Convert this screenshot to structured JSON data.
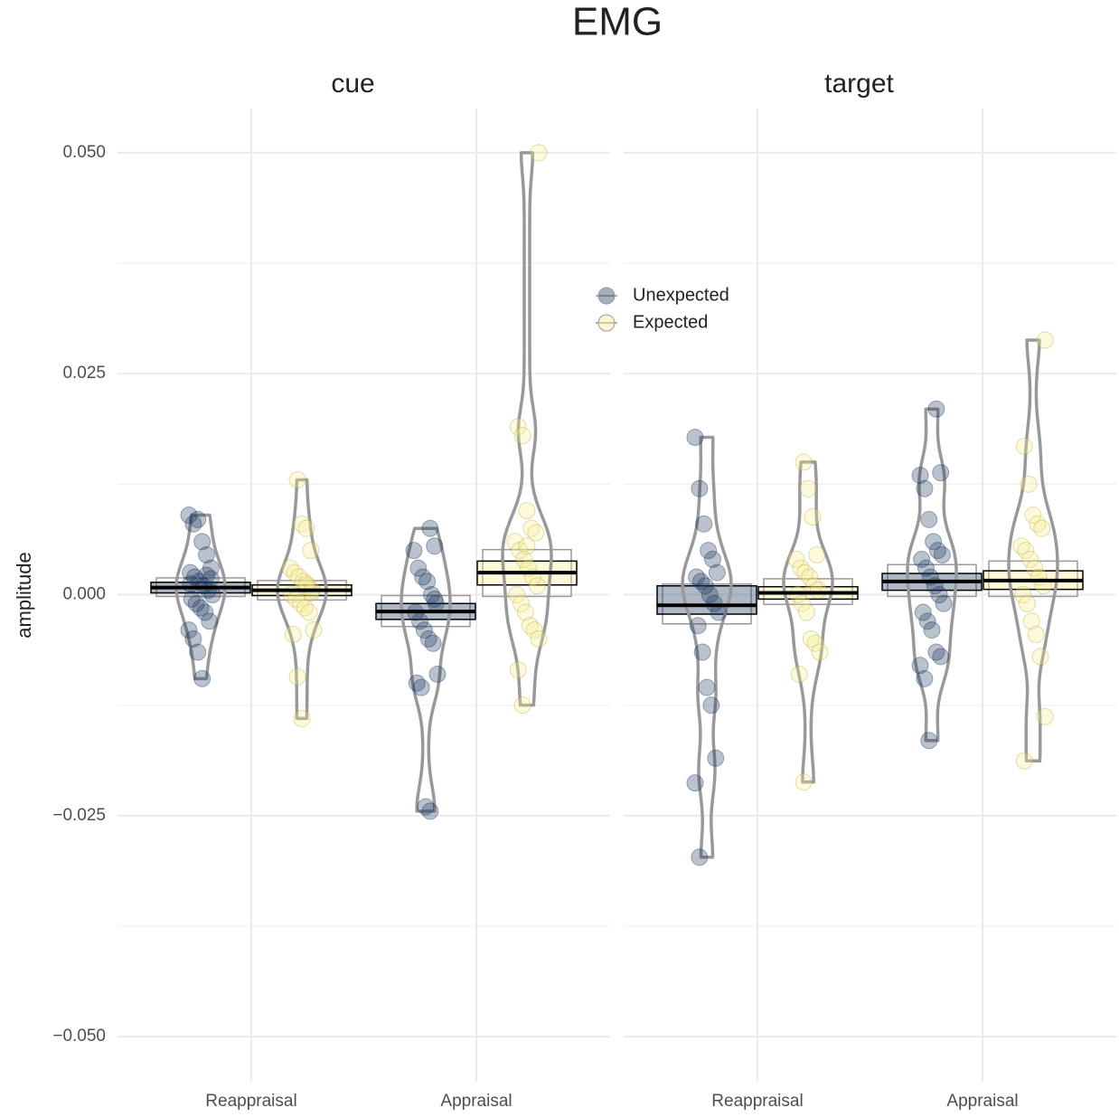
{
  "chart_data": {
    "type": "pirate",
    "title": "EMG",
    "ylabel": "amplitude",
    "ylim": [
      -0.055,
      0.055
    ],
    "yticks": [
      {
        "value": -0.05,
        "label": "−0.050"
      },
      {
        "value": -0.025,
        "label": "−0.025"
      },
      {
        "value": 0,
        "label": "0.000"
      },
      {
        "value": 0.025,
        "label": "0.025"
      },
      {
        "value": 0.05,
        "label": "0.050"
      }
    ],
    "grid": true,
    "series": [
      {
        "name": "Unexpected",
        "color": "#1b365d"
      },
      {
        "name": "Expected",
        "color": "#f7ec8f"
      }
    ],
    "panels": [
      {
        "title": "cue",
        "categories": [
          "Reappraisal",
          "Appraisal"
        ],
        "data": [
          {
            "mean": [
              0.0008,
              -0.0019
            ],
            "band": [
              [
                0.0002,
                0.0014
              ],
              [
                -0.0028,
                -0.001
              ]
            ],
            "band_outer": [
              [
                -0.0002,
                0.0019
              ],
              [
                -0.0036,
                -0.0001
              ]
            ],
            "points": [
              [
                0.009,
                0.008,
                0.0085,
                0.006,
                0.0045,
                0.003,
                0.0025,
                0.002,
                0.0015,
                0.001,
                0.0005,
                0,
                -0.0005,
                -0.001,
                -0.0015,
                -0.002,
                -0.003,
                -0.004,
                -0.005,
                -0.0065,
                -0.0095,
                0.0022,
                0.0018,
                0.0012
              ],
              [
                0.0075,
                0.0055,
                0.005,
                0.003,
                0.002,
                0.0015,
                0,
                -0.001,
                -0.002,
                -0.003,
                -0.004,
                -0.005,
                -0.0055,
                -0.009,
                -0.01,
                -0.0105,
                -0.024,
                -0.0245,
                -0.0005
              ]
            ]
          },
          {
            "mean": [
              0.0005,
              0.0025
            ],
            "band": [
              [
                -0.0001,
                0.0011
              ],
              [
                0.0011,
                0.0038
              ]
            ],
            "band_outer": [
              [
                -0.0006,
                0.0016
              ],
              [
                -0.0002,
                0.0051
              ]
            ],
            "points": [
              [
                0.013,
                0.008,
                0.0075,
                0.005,
                0.003,
                0.0025,
                0.002,
                0.0015,
                0.001,
                0.0005,
                0,
                -0.0005,
                -0.001,
                -0.0015,
                -0.002,
                -0.004,
                -0.0045,
                -0.0093,
                -0.014,
                0.0012,
                0.0002
              ],
              [
                0.05,
                0.019,
                0.018,
                0.0095,
                0.0075,
                0.007,
                0.006,
                0.005,
                0.004,
                0.003,
                0.002,
                0.001,
                0,
                -0.001,
                -0.002,
                -0.0035,
                -0.004,
                -0.005,
                -0.0085,
                -0.0125,
                0.0055
              ]
            ]
          }
        ]
      },
      {
        "title": "target",
        "categories": [
          "Reappraisal",
          "Appraisal"
        ],
        "data": [
          {
            "mean": [
              -0.0012,
              0.0015
            ],
            "band": [
              [
                -0.0022,
                0.001
              ],
              [
                0.0005,
                0.0024
              ]
            ],
            "band_outer": [
              [
                -0.0033,
                0.0012
              ],
              [
                -0.0002,
                0.0034
              ]
            ],
            "points": [
              [
                0.0178,
                0.012,
                0.008,
                0.005,
                0.004,
                0.0025,
                0.002,
                0.0015,
                0.001,
                0,
                -0.001,
                -0.002,
                -0.0035,
                -0.0065,
                -0.0105,
                -0.0125,
                -0.0185,
                -0.0213,
                -0.0297
              ],
              [
                0.021,
                0.0138,
                0.0135,
                0.012,
                0.0085,
                0.006,
                0.005,
                0.0045,
                0.004,
                0.003,
                0.002,
                0.001,
                0,
                -0.001,
                -0.002,
                -0.003,
                -0.004,
                -0.0065,
                -0.007,
                -0.008,
                -0.0095,
                -0.0165
              ]
            ]
          },
          {
            "mean": [
              0.0002,
              0.0016
            ],
            "band": [
              [
                -0.0005,
                0.0009
              ],
              [
                0.0006,
                0.0027
              ]
            ],
            "band_outer": [
              [
                -0.0011,
                0.0018
              ],
              [
                -0.0002,
                0.0038
              ]
            ],
            "points": [
              [
                0.015,
                0.012,
                0.0088,
                0.0045,
                0.004,
                0.003,
                0.0025,
                0.002,
                0.001,
                0.0005,
                0,
                -0.001,
                -0.002,
                -0.005,
                -0.0055,
                -0.0065,
                -0.009,
                -0.0212
              ],
              [
                0.0288,
                0.0168,
                0.0125,
                0.009,
                0.008,
                0.0075,
                0.0055,
                0.005,
                0.004,
                0.003,
                0.002,
                0.001,
                0,
                -0.001,
                -0.003,
                -0.0045,
                -0.007,
                -0.0138,
                -0.0188
              ]
            ]
          }
        ]
      }
    ]
  }
}
